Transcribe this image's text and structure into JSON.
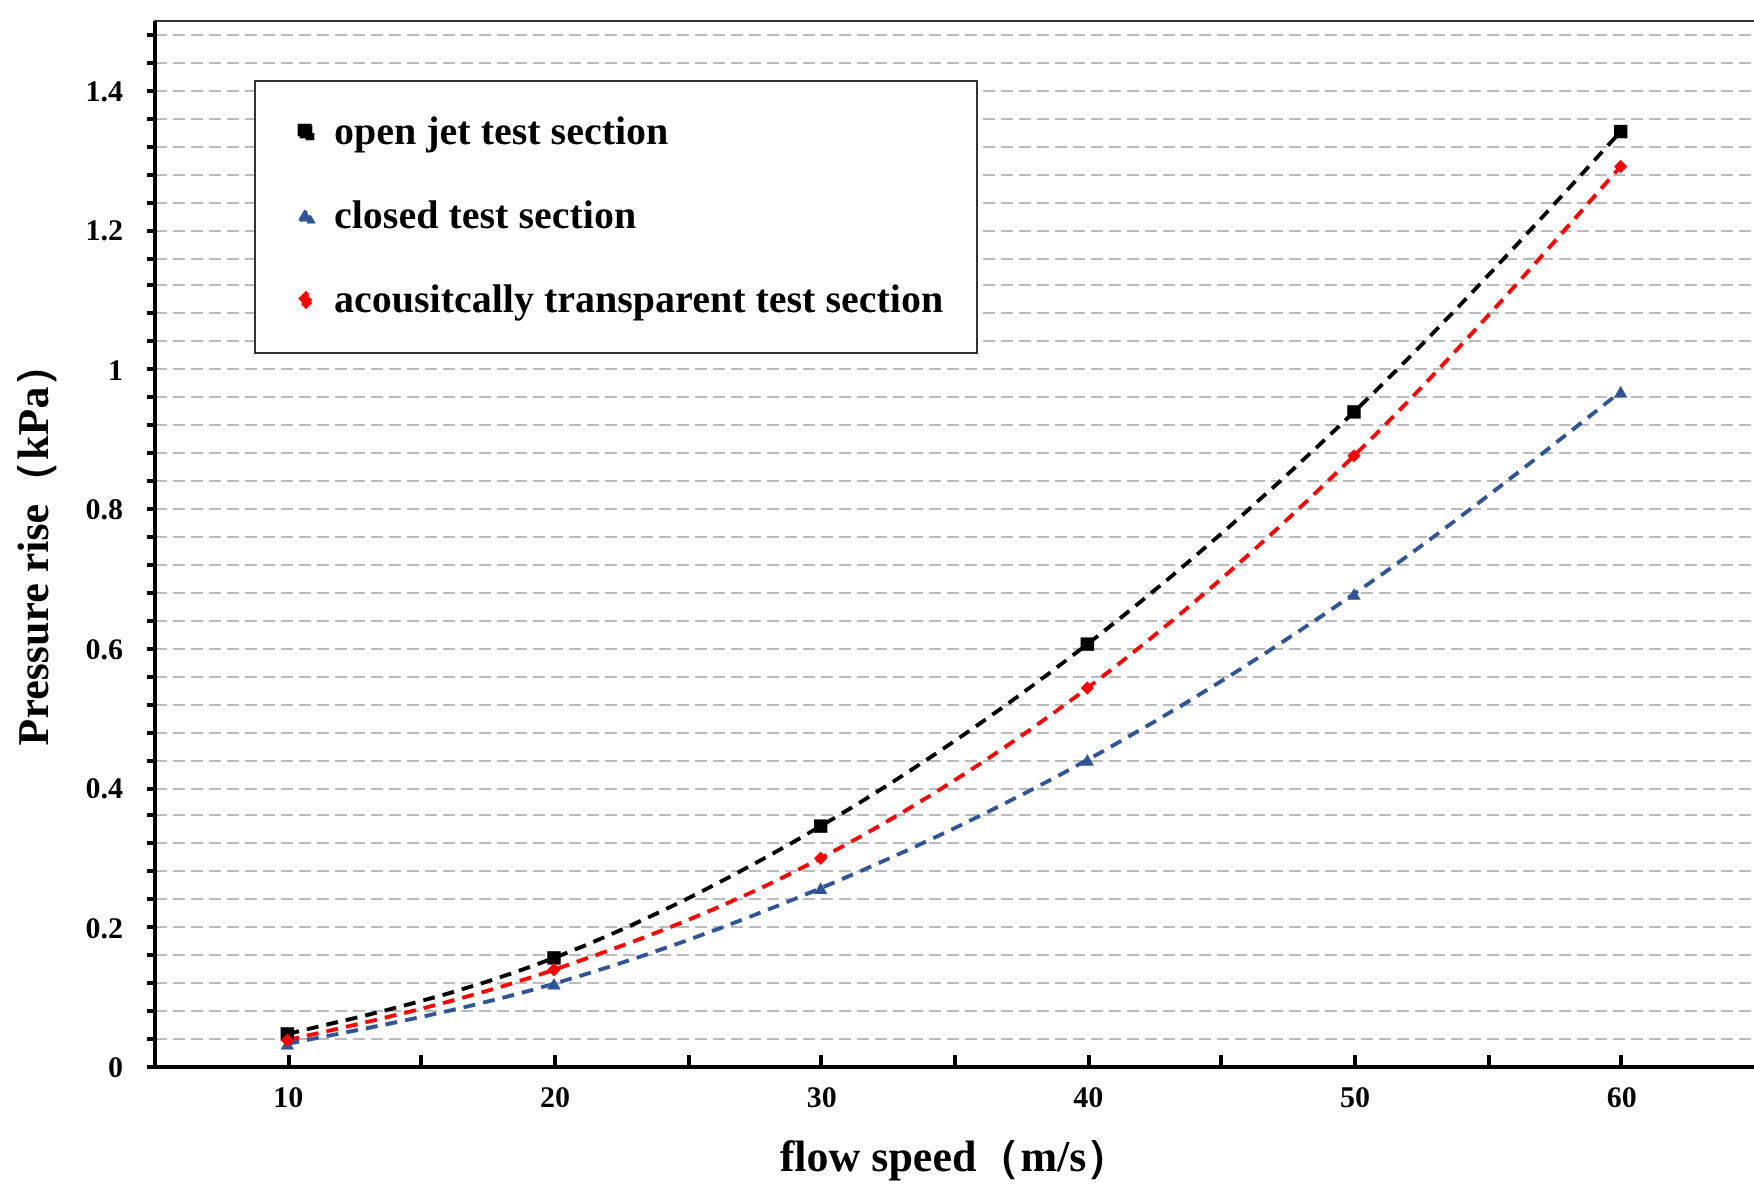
{
  "chart_data": {
    "type": "line",
    "xlabel": "flow speed（m/s）",
    "ylabel": "Pressure rise（kPa）",
    "x": [
      10,
      20,
      30,
      40,
      50,
      60
    ],
    "series": [
      {
        "name": "open jet test section",
        "color": "#000000",
        "marker": "square",
        "line_style": "dashed",
        "values": [
          0.046,
          0.155,
          0.344,
          0.605,
          0.938,
          1.34
        ]
      },
      {
        "name": "closed test section",
        "color": "#2f5597",
        "marker": "triangle",
        "line_style": "dashed",
        "values": [
          0.032,
          0.118,
          0.255,
          0.439,
          0.677,
          0.967
        ]
      },
      {
        "name": "acousitcally transparent test section",
        "color": "#ff0000",
        "marker": "diamond",
        "line_style": "dashed",
        "values": [
          0.037,
          0.138,
          0.298,
          0.542,
          0.875,
          1.29
        ]
      }
    ],
    "xlim": [
      5,
      65
    ],
    "xticks": [
      10,
      {
        "value": 15,
        "label": null
      },
      20,
      {
        "value": 25,
        "label": null
      },
      30,
      {
        "value": 35,
        "label": null
      },
      40,
      {
        "value": 45,
        "label": null
      },
      50,
      {
        "value": 55,
        "label": null
      },
      60
    ],
    "ylim": [
      0,
      1.5
    ],
    "yticks": [
      0,
      {
        "value": 0.04,
        "label": null
      },
      {
        "value": 0.08,
        "label": null
      },
      {
        "value": 0.12,
        "label": null
      },
      {
        "value": 0.16,
        "label": null
      },
      0.2,
      {
        "value": 0.24,
        "label": null
      },
      {
        "value": 0.28,
        "label": null
      },
      {
        "value": 0.32,
        "label": null
      },
      {
        "value": 0.36,
        "label": null
      },
      0.4,
      {
        "value": 0.44,
        "label": null
      },
      {
        "value": 0.48,
        "label": null
      },
      {
        "value": 0.52,
        "label": null
      },
      {
        "value": 0.56,
        "label": null
      },
      0.6,
      {
        "value": 0.64,
        "label": null
      },
      {
        "value": 0.68,
        "label": null
      },
      {
        "value": 0.72,
        "label": null
      },
      {
        "value": 0.76,
        "label": null
      },
      0.8,
      {
        "value": 0.84,
        "label": null
      },
      {
        "value": 0.88,
        "label": null
      },
      {
        "value": 0.92,
        "label": null
      },
      {
        "value": 0.96,
        "label": null
      },
      1,
      {
        "value": 1.04,
        "label": null
      },
      {
        "value": 1.08,
        "label": null
      },
      {
        "value": 1.12,
        "label": null
      },
      {
        "value": 1.16,
        "label": null
      },
      1.2,
      {
        "value": 1.24,
        "label": null
      },
      {
        "value": 1.28,
        "label": null
      },
      {
        "value": 1.32,
        "label": null
      },
      {
        "value": 1.36,
        "label": null
      },
      1.4,
      {
        "value": 1.44,
        "label": null
      },
      {
        "value": 1.48,
        "label": null
      }
    ],
    "grid": "y",
    "legend": "top left"
  }
}
